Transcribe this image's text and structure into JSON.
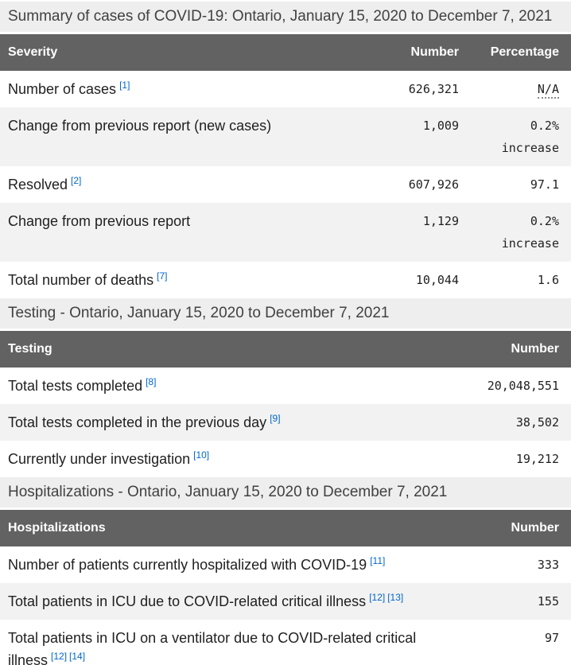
{
  "colors": {
    "header_bg": "#626262",
    "header_text": "#ffffff",
    "caption_bg": "#eeeeee",
    "caption_text": "#414141",
    "row_alt_bg": "#f2f2f2",
    "body_text": "#1f1f1f",
    "footnote_link_blue": "#0066cc"
  },
  "tables": [
    {
      "caption": "Summary of cases of COVID-19: Ontario, January 15, 2020 to December 7, 2021",
      "columns": [
        "Severity",
        "Number",
        "Percentage"
      ],
      "rows": [
        {
          "label": "Number of cases",
          "notes": [
            "[1]"
          ],
          "number": "626,321",
          "pct": [
            "N/A"
          ],
          "na": true
        },
        {
          "label": "Change from previous report (new cases)",
          "notes": [],
          "number": "1,009",
          "pct": [
            "0.2%",
            "increase"
          ]
        },
        {
          "label": "Resolved",
          "notes": [
            "[2]"
          ],
          "number": "607,926",
          "pct": [
            "97.1"
          ]
        },
        {
          "label": "Change from previous report",
          "notes": [],
          "number": "1,129",
          "pct": [
            "0.2%",
            "increase"
          ]
        },
        {
          "label": "Total number of deaths",
          "notes": [
            "[7]"
          ],
          "number": "10,044",
          "pct": [
            "1.6"
          ]
        }
      ]
    },
    {
      "caption": "Testing - Ontario, January 15, 2020 to December 7, 2021",
      "columns": [
        "Testing",
        "Number"
      ],
      "rows": [
        {
          "label": "Total tests completed",
          "notes": [
            "[8]"
          ],
          "number": "20,048,551"
        },
        {
          "label": "Total tests completed in the previous day",
          "notes": [
            "[9]"
          ],
          "number": "38,502"
        },
        {
          "label": "Currently under investigation",
          "notes": [
            "[10]"
          ],
          "number": "19,212"
        }
      ]
    },
    {
      "caption": "Hospitalizations - Ontario, January 15, 2020 to December 7, 2021",
      "columns": [
        "Hospitalizations",
        "Number"
      ],
      "rows": [
        {
          "label": "Number of patients currently hospitalized with COVID-19",
          "notes": [
            "[11]"
          ],
          "number": "333"
        },
        {
          "label": "Total patients in ICU due to COVID-related critical illness",
          "notes": [
            "[12]",
            "[13]"
          ],
          "number": "155"
        },
        {
          "label": "Total patients in ICU on a ventilator due to COVID-related critical illness",
          "notes": [
            "[12]",
            "[14]"
          ],
          "number": "97"
        }
      ]
    }
  ]
}
